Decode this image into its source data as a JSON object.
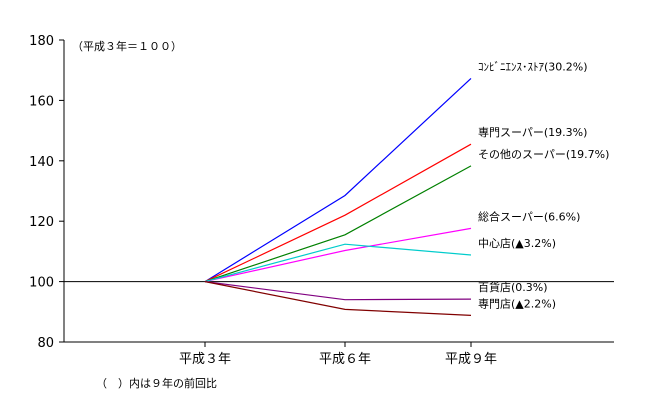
{
  "chart_data": {
    "type": "line",
    "subtitle": "（平成３年＝１００）",
    "footnote": "（　）内は９年の前回比",
    "categories": [
      "平成３年",
      "平成６年",
      "平成９年"
    ],
    "ylim": [
      80,
      180
    ],
    "yticks": [
      80,
      100,
      120,
      140,
      160,
      180
    ],
    "reference_line": 100,
    "grid": false,
    "series": [
      {
        "name": "ｺﾝﾋﾞﾆｴﾝｽ･ｽﾄｱ(30.2%)",
        "color": "#0000ff",
        "values": [
          100,
          128.5,
          167.3
        ]
      },
      {
        "name": "専門スーパー(19.3%)",
        "color": "#ff0000",
        "values": [
          100,
          122,
          145.5
        ]
      },
      {
        "name": "その他のスーパー(19.7%)",
        "color": "#008000",
        "values": [
          100,
          115.5,
          138.3
        ]
      },
      {
        "name": "総合スーパー(6.6%)",
        "color": "#ff00ff",
        "values": [
          100,
          110.3,
          117.6
        ]
      },
      {
        "name": "中心店(▲3.2%)",
        "color": "#00cccc",
        "values": [
          100,
          112.4,
          108.8
        ]
      },
      {
        "name": "百貨店(0.3%)",
        "color": "#800080",
        "values": [
          100,
          94,
          94.2
        ]
      },
      {
        "name": "専門店(▲2.2%)",
        "color": "#800000",
        "values": [
          100,
          90.8,
          88.8
        ]
      }
    ]
  }
}
